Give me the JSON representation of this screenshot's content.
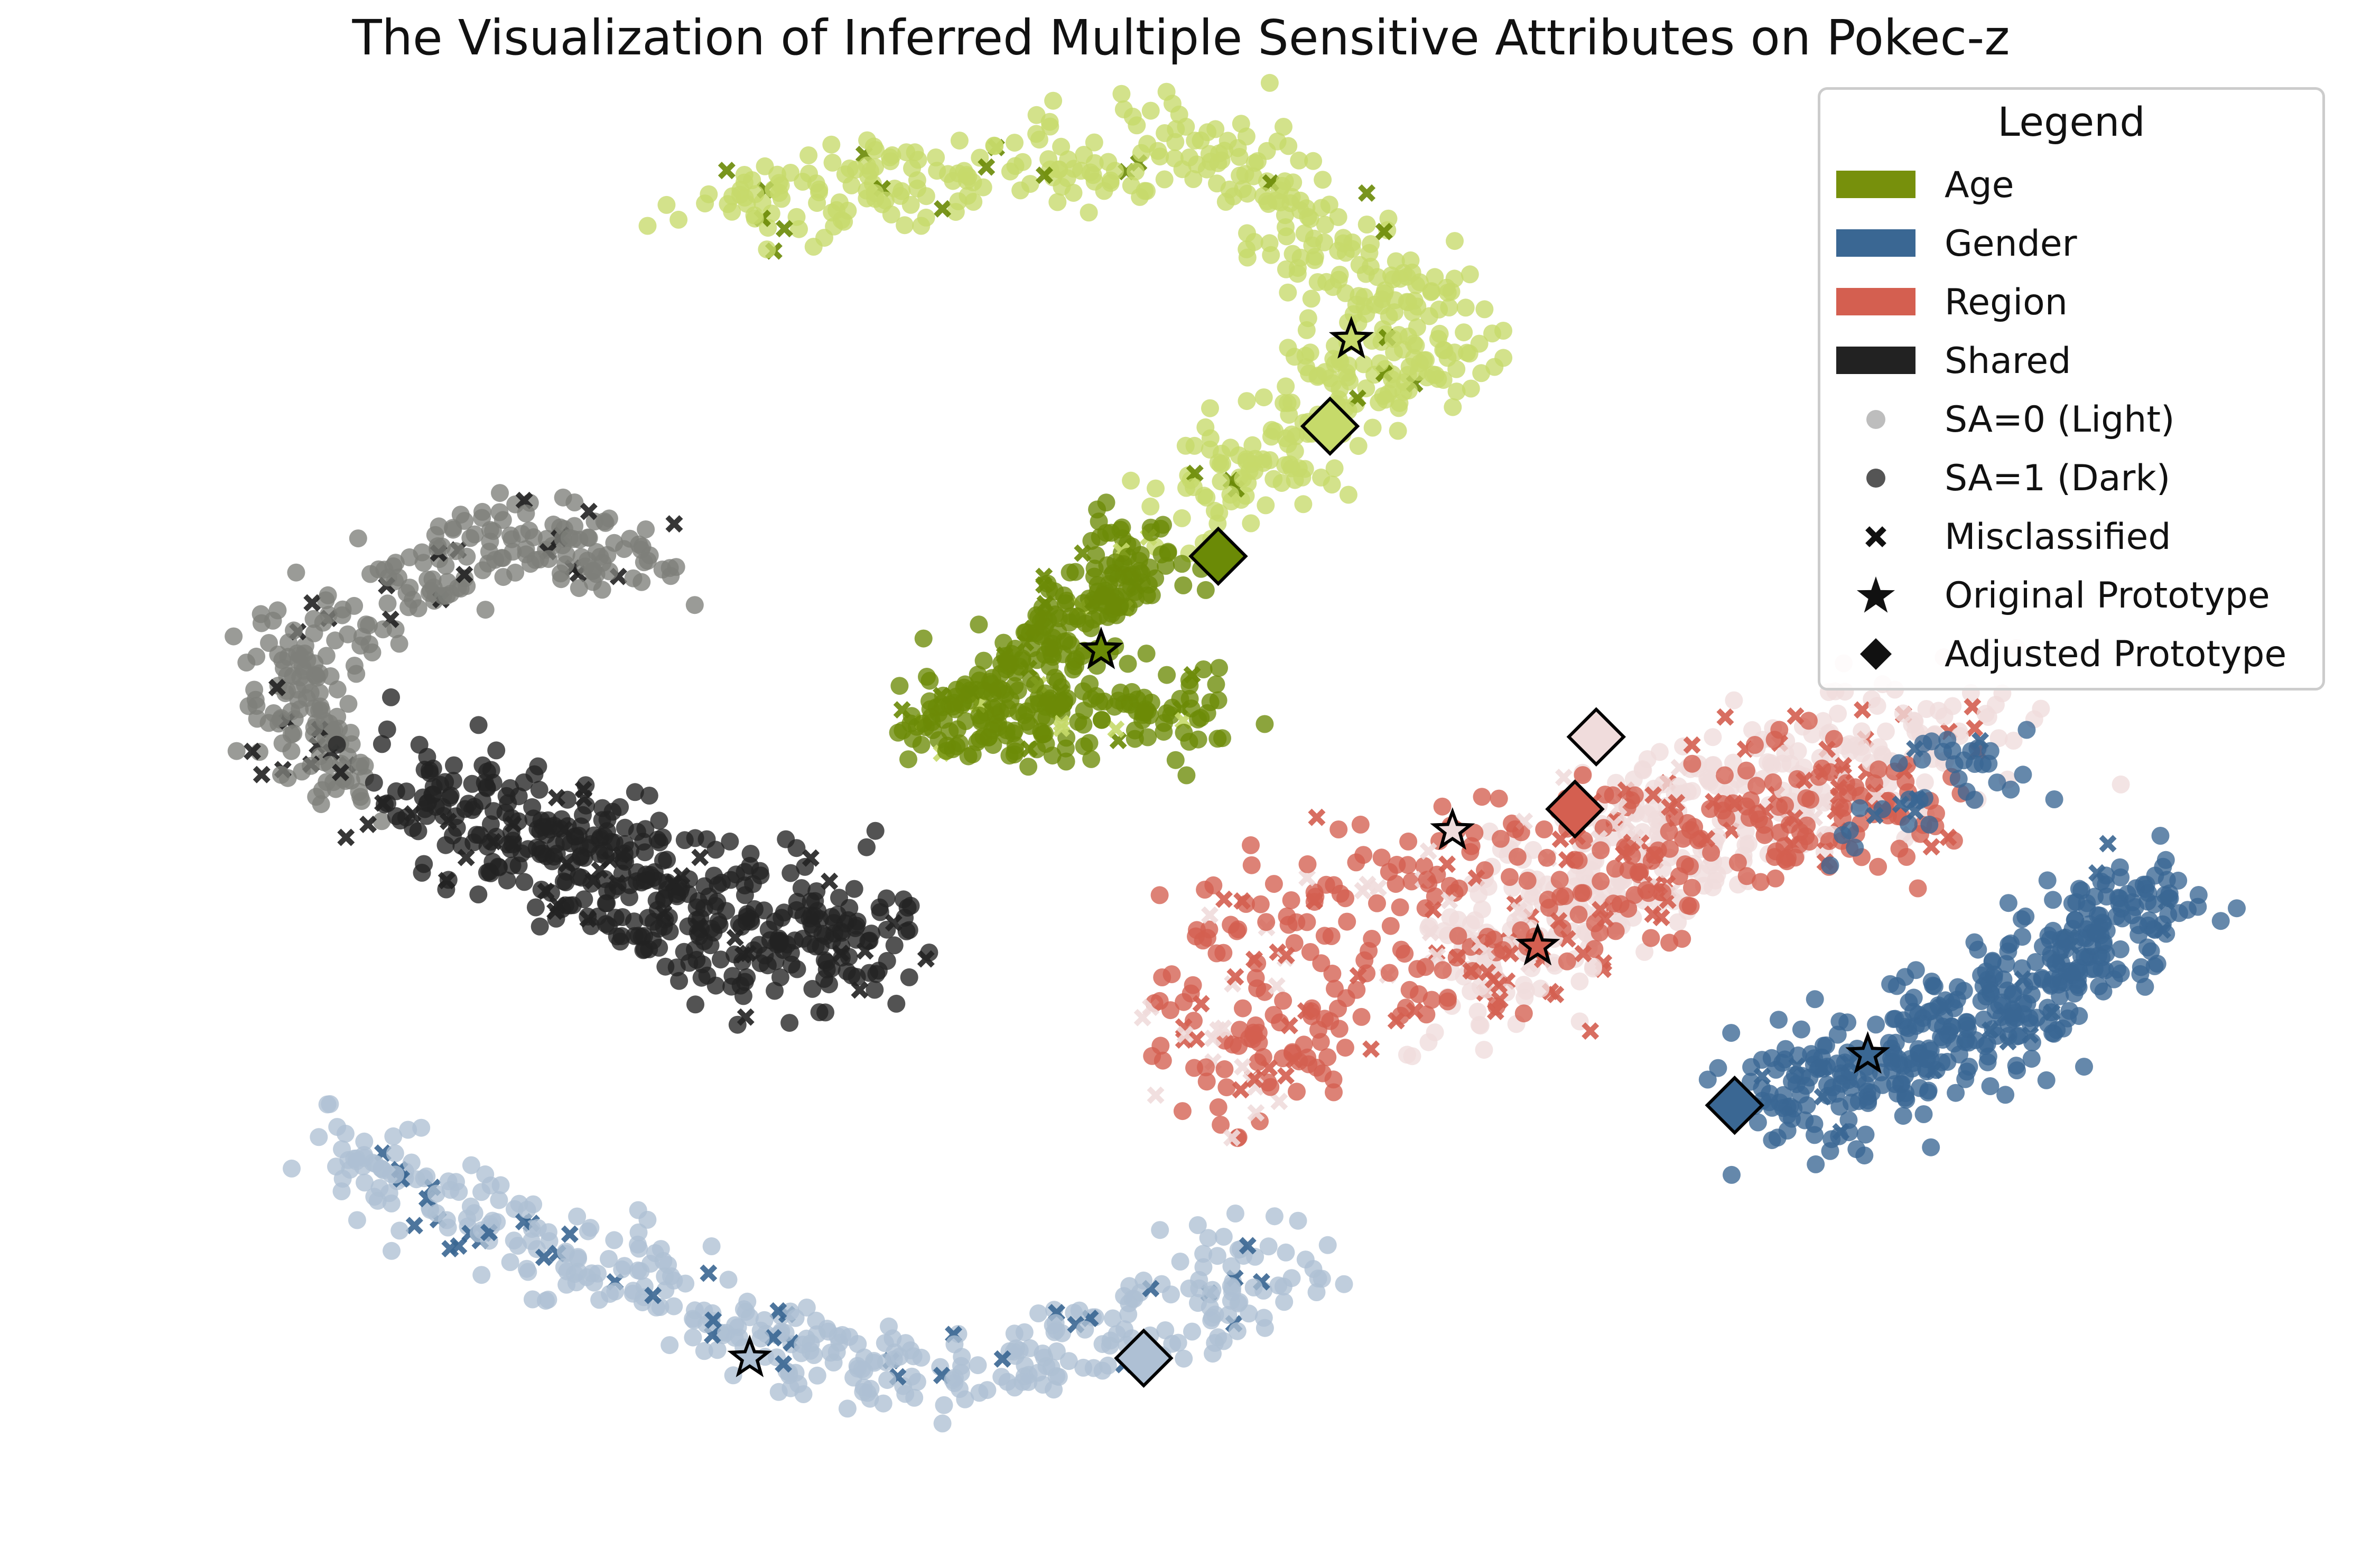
{
  "chart_data": {
    "type": "scatter",
    "title": "The Visualization of Inferred Multiple Sensitive Attributes on Pokec-z",
    "xlabel": "",
    "ylabel": "",
    "axes_visible": false,
    "xlim": [
      -100,
      100
    ],
    "ylim": [
      -100,
      100
    ],
    "legend_position": "top-right",
    "legend": {
      "title": "Legend",
      "entries": [
        {
          "label": "Age",
          "kind": "patch",
          "color": "#77900c"
        },
        {
          "label": "Gender",
          "kind": "patch",
          "color": "#3a6793"
        },
        {
          "label": "Region",
          "kind": "patch",
          "color": "#d45f50"
        },
        {
          "label": "Shared",
          "kind": "patch",
          "color": "#222222"
        },
        {
          "label": "SA=0 (Light)",
          "kind": "dot",
          "color": "#bdbdbd"
        },
        {
          "label": "SA=1 (Dark)",
          "kind": "dot",
          "color": "#555555"
        },
        {
          "label": "Misclassified",
          "kind": "cross",
          "color": "#111111"
        },
        {
          "label": "Original Prototype",
          "kind": "star",
          "color": "#111111"
        },
        {
          "label": "Adjusted Prototype",
          "kind": "diamond",
          "color": "#111111"
        }
      ]
    },
    "series": [
      {
        "group": "Age",
        "sa": 0,
        "color": "#c6da6a",
        "path": [
          [
            -45,
            86
          ],
          [
            -35,
            88
          ],
          [
            -25,
            89
          ],
          [
            -15,
            92
          ],
          [
            -5,
            94
          ],
          [
            5,
            93
          ],
          [
            10,
            88
          ],
          [
            13,
            80
          ],
          [
            16,
            76
          ],
          [
            20,
            74
          ],
          [
            24,
            70
          ],
          [
            22,
            64
          ],
          [
            17,
            62
          ],
          [
            12,
            58
          ],
          [
            8,
            53
          ],
          [
            4,
            48
          ],
          [
            0,
            44
          ]
        ],
        "count": 520,
        "spread": 3.2,
        "misclassified_fraction": 0.04
      },
      {
        "group": "Age",
        "sa": 1,
        "color": "#6b8a06",
        "path": [
          [
            -7,
            41
          ],
          [
            -4,
            36
          ],
          [
            -8,
            32
          ],
          [
            -12,
            27
          ],
          [
            -16,
            22
          ],
          [
            -20,
            18
          ],
          [
            -24,
            14
          ],
          [
            -17,
            15
          ],
          [
            -10,
            16
          ],
          [
            -4,
            15
          ],
          [
            2,
            18
          ]
        ],
        "count": 380,
        "spread": 2.6,
        "misclassified_fraction": 0.07
      },
      {
        "group": "Shared",
        "sa": 0,
        "color": "#7d7f7a",
        "path": [
          [
            -49,
            36
          ],
          [
            -55,
            38
          ],
          [
            -62,
            41
          ],
          [
            -68,
            39
          ],
          [
            -73,
            33
          ],
          [
            -80,
            28
          ],
          [
            -85,
            22
          ],
          [
            -82,
            16
          ],
          [
            -84,
            10
          ],
          [
            -78,
            6
          ]
        ],
        "count": 300,
        "spread": 2.6,
        "misclassified_fraction": 0.1
      },
      {
        "group": "Shared",
        "sa": 1,
        "color": "#222222",
        "path": [
          [
            -76,
            8
          ],
          [
            -70,
            5
          ],
          [
            -64,
            2
          ],
          [
            -58,
            0
          ],
          [
            -52,
            -2
          ],
          [
            -46,
            -6
          ],
          [
            -40,
            -10
          ],
          [
            -33,
            -14
          ],
          [
            -28,
            -16
          ],
          [
            -34,
            -18
          ],
          [
            -40,
            -18
          ],
          [
            -46,
            -14
          ],
          [
            -53,
            -10
          ],
          [
            -58,
            -5
          ],
          [
            -64,
            -1
          ],
          [
            -70,
            2
          ]
        ],
        "count": 460,
        "spread": 3.6,
        "misclassified_fraction": 0.06
      },
      {
        "group": "Region",
        "sa": 0,
        "color": "#f0dcdc",
        "path": [
          [
            25,
            -18
          ],
          [
            30,
            -12
          ],
          [
            36,
            -6
          ],
          [
            42,
            0
          ],
          [
            48,
            5
          ],
          [
            55,
            9
          ],
          [
            63,
            12
          ],
          [
            70,
            13
          ],
          [
            76,
            14
          ],
          [
            60,
            6
          ],
          [
            48,
            -2
          ],
          [
            38,
            -10
          ],
          [
            30,
            -20
          ],
          [
            26,
            -28
          ]
        ],
        "count": 430,
        "spread": 3.8,
        "misclassified_fraction": 0.12
      },
      {
        "group": "Region",
        "sa": 1,
        "color": "#d45f50",
        "path": [
          [
            6,
            -10
          ],
          [
            12,
            -8
          ],
          [
            20,
            -6
          ],
          [
            28,
            -2
          ],
          [
            36,
            2
          ],
          [
            44,
            4
          ],
          [
            52,
            5
          ],
          [
            60,
            6
          ],
          [
            66,
            4
          ],
          [
            70,
            2
          ],
          [
            58,
            0
          ],
          [
            48,
            -4
          ],
          [
            40,
            -10
          ],
          [
            32,
            -15
          ],
          [
            24,
            -18
          ],
          [
            14,
            -24
          ],
          [
            8,
            -30
          ],
          [
            5,
            -36
          ],
          [
            2,
            -24
          ],
          [
            3,
            -14
          ]
        ],
        "count": 460,
        "spread": 3.4,
        "misclassified_fraction": 0.2
      },
      {
        "group": "Gender",
        "sa": 0,
        "color": "#aec0d4",
        "path": [
          [
            -80,
            -44
          ],
          [
            -74,
            -48
          ],
          [
            -67,
            -52
          ],
          [
            -60,
            -58
          ],
          [
            -52,
            -62
          ],
          [
            -44,
            -68
          ],
          [
            -36,
            -72
          ],
          [
            -28,
            -74
          ],
          [
            -20,
            -76
          ],
          [
            -12,
            -72
          ],
          [
            -4,
            -68
          ],
          [
            4,
            -64
          ],
          [
            10,
            -58
          ]
        ],
        "count": 430,
        "spread": 2.8,
        "misclassified_fraction": 0.1
      },
      {
        "group": "Gender",
        "sa": 1,
        "color": "#3a6793",
        "path": [
          [
            54,
            -38
          ],
          [
            60,
            -35
          ],
          [
            66,
            -31
          ],
          [
            72,
            -28
          ],
          [
            78,
            -24
          ],
          [
            82,
            -18
          ],
          [
            86,
            -12
          ],
          [
            90,
            -8
          ],
          [
            85,
            -18
          ],
          [
            78,
            -24
          ],
          [
            70,
            -30
          ],
          [
            62,
            -34
          ],
          [
            56,
            -40
          ]
        ],
        "count": 430,
        "spread": 3.6,
        "misclassified_fraction": 0.03
      },
      {
        "group": "Gender",
        "sa": 1,
        "color": "#3a6793",
        "path": [
          [
            68,
            10
          ],
          [
            74,
            12
          ],
          [
            78,
            11
          ],
          [
            62,
            -3
          ],
          [
            64,
            4
          ]
        ],
        "count": 40,
        "spread": 1.8,
        "misclassified_fraction": 0.1
      }
    ],
    "prototypes": [
      {
        "group": "Age",
        "sa": 0,
        "kind": "original",
        "x": 15.5,
        "y": 68,
        "color": "#c6da6a"
      },
      {
        "group": "Age",
        "sa": 0,
        "kind": "adjusted",
        "x": 13.5,
        "y": 56,
        "color": "#c6da6a"
      },
      {
        "group": "Age",
        "sa": 1,
        "kind": "adjusted",
        "x": 3,
        "y": 38,
        "color": "#6b8a06"
      },
      {
        "group": "Age",
        "sa": 1,
        "kind": "original",
        "x": -8,
        "y": 25,
        "color": "#6b8a06"
      },
      {
        "group": "Region",
        "sa": 0,
        "kind": "adjusted",
        "x": 38.5,
        "y": 13,
        "color": "#f0dcdc"
      },
      {
        "group": "Region",
        "sa": 1,
        "kind": "adjusted",
        "x": 36.5,
        "y": 3,
        "color": "#d45f50"
      },
      {
        "group": "Region",
        "sa": 0,
        "kind": "original",
        "x": 25,
        "y": 0,
        "color": "#f0dcdc"
      },
      {
        "group": "Region",
        "sa": 1,
        "kind": "original",
        "x": 33,
        "y": -16,
        "color": "#d45f50"
      },
      {
        "group": "Gender",
        "sa": 1,
        "kind": "original",
        "x": 64,
        "y": -31,
        "color": "#3a6793"
      },
      {
        "group": "Gender",
        "sa": 1,
        "kind": "adjusted",
        "x": 51.5,
        "y": -38,
        "color": "#3a6793"
      },
      {
        "group": "Gender",
        "sa": 0,
        "kind": "original",
        "x": -41,
        "y": -73,
        "color": "#aec0d4"
      },
      {
        "group": "Gender",
        "sa": 0,
        "kind": "adjusted",
        "x": -4,
        "y": -73,
        "color": "#aec0d4"
      }
    ]
  }
}
